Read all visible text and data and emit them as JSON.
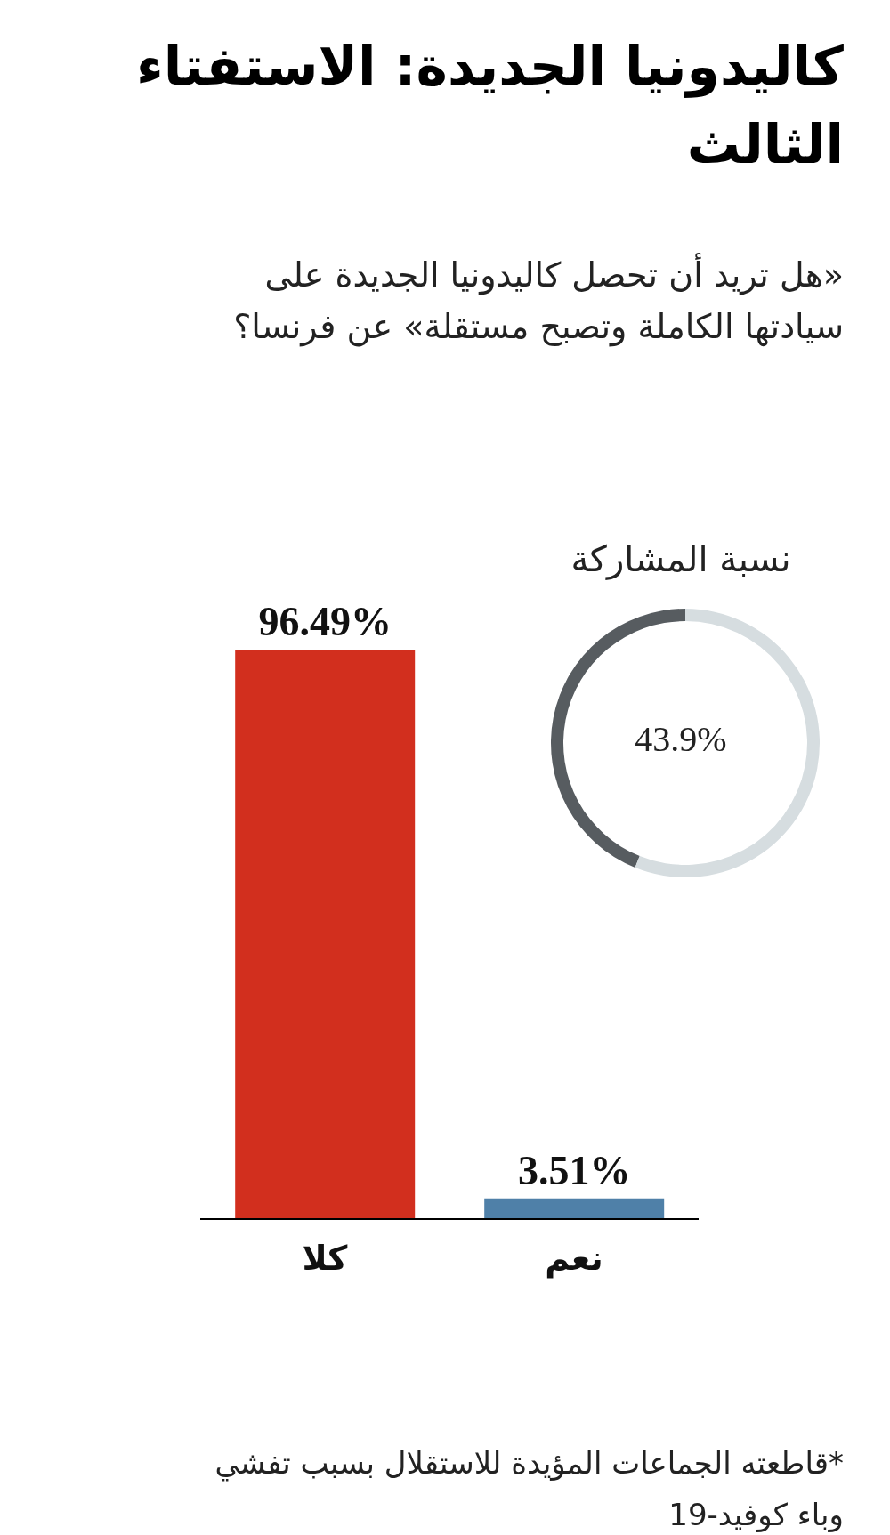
{
  "chart_data": [
    {
      "type": "bar",
      "title": "كاليدونيا الجديدة: الاستفتاء الثالث",
      "subtitle": "«هل تريد أن تحصل كاليدونيا الجديدة على سيادتها الكاملة وتصبح مستقلة» عن فرنسا؟",
      "categories": [
        "كلا",
        "نعم"
      ],
      "values": [
        96.49,
        3.51
      ],
      "colors": [
        "#d22f1e",
        "#4f80a8"
      ],
      "value_labels": [
        "96.49%",
        "3.51%"
      ],
      "annotations": [
        "*قاطعته الجماعات المؤيدة للاستقلال بسبب تفشي وباء كوفيد-19"
      ]
    },
    {
      "type": "donut",
      "title": "نسبة المشاركة",
      "categories": [
        null,
        null
      ],
      "values": [
        43.9,
        56.1
      ],
      "colors": [
        "#575c60",
        "#d6dde0"
      ],
      "value_labels": [
        "43.9%",
        null
      ]
    }
  ]
}
